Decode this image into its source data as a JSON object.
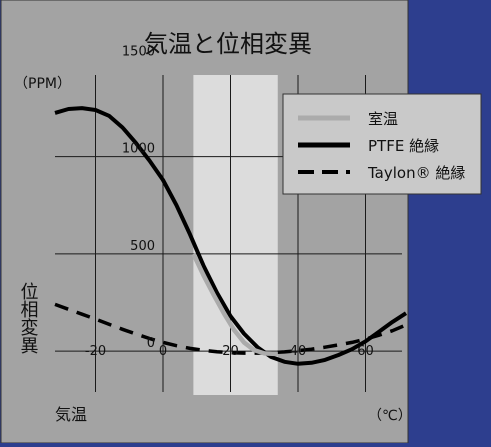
{
  "colors": {
    "page_background": "#2d3e8e",
    "panel_background": "#a3a3a3",
    "panel_border": "#333333",
    "band_fill": "#dcdcdc",
    "grid": "#1a1a1a",
    "legend_fill": "#c9c9c9",
    "room_temp_line": "#ababab",
    "curve_black": "#000000"
  },
  "chart_data": {
    "type": "line",
    "title": "気温と位相変異",
    "xlabel": "気温",
    "ylabel": "位相変異",
    "x_unit": "（℃）",
    "y_unit": "（PPM）",
    "xlim": [
      -32,
      72
    ],
    "ylim": [
      -200,
      1600
    ],
    "x_ticks": [
      -20,
      0,
      20,
      40,
      60
    ],
    "x_tick_labels": [
      "-20",
      "0",
      "20",
      "40",
      "60"
    ],
    "y_ticks": [
      0,
      500,
      1000,
      1500
    ],
    "y_tick_labels": [
      "0",
      "500",
      "1000",
      "1500"
    ],
    "grid": true,
    "legend_position": "top-right",
    "highlight_band": {
      "x_start": 9,
      "x_end": 34,
      "meaning": "室温"
    },
    "series": [
      {
        "name": "室温",
        "style": "solid-gray",
        "x": [
          9,
          12,
          15,
          18,
          21,
          24,
          27,
          30,
          34
        ],
        "y": [
          500,
          390,
          290,
          195,
          110,
          45,
          5,
          -12,
          -15
        ]
      },
      {
        "name": "PTFE 絶縁",
        "style": "solid",
        "x": [
          -32,
          -28,
          -24,
          -20,
          -16,
          -12,
          -8,
          -4,
          0,
          4,
          8,
          12,
          16,
          20,
          24,
          28,
          32,
          36,
          40,
          44,
          48,
          52,
          56,
          60,
          64,
          68,
          72
        ],
        "y": [
          1225,
          1245,
          1250,
          1240,
          1210,
          1150,
          1070,
          980,
          880,
          750,
          600,
          440,
          300,
          180,
          90,
          20,
          -30,
          -55,
          -65,
          -60,
          -45,
          -20,
          10,
          50,
          100,
          150,
          195
        ]
      },
      {
        "name": "Taylon® 絶縁",
        "style": "dashed",
        "x": [
          -32,
          -28,
          -24,
          -20,
          -16,
          -12,
          -8,
          -4,
          0,
          4,
          8,
          12,
          16,
          20,
          24,
          28,
          32,
          36,
          40,
          44,
          48,
          52,
          56,
          60,
          64,
          68,
          72
        ],
        "y": [
          240,
          215,
          190,
          165,
          138,
          112,
          88,
          65,
          45,
          28,
          14,
          4,
          -3,
          -8,
          -10,
          -10,
          -8,
          -4,
          2,
          10,
          20,
          32,
          45,
          62,
          82,
          105,
          135
        ]
      }
    ]
  }
}
